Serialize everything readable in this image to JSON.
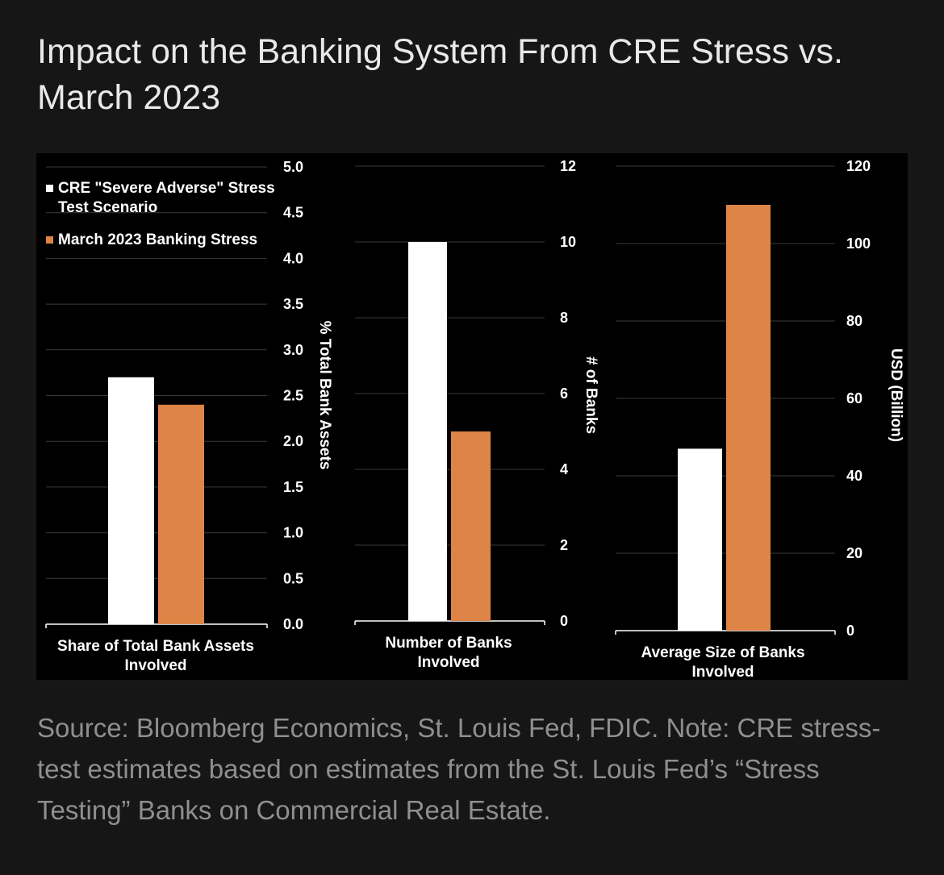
{
  "title": "Impact on the Banking System From CRE Stress vs. March 2023",
  "source": "Source: Bloomberg Economics, St. Louis Fed, FDIC. Note: CRE stress-test estimates based on estimates from the St. Louis Fed’s “Stress Testing” Banks on Commercial Real Estate.",
  "colors": {
    "background": "#161616",
    "panel": "#000000",
    "series_cre": "#ffffff",
    "series_march": "#dd8446",
    "grid": "#3a3a3a"
  },
  "legend": [
    {
      "label": "CRE \"Severe Adverse\" Stress Test Scenario",
      "color": "#ffffff"
    },
    {
      "label": "March 2023 Banking Stress",
      "color": "#dd8446"
    }
  ],
  "chart_data": [
    {
      "type": "bar",
      "categories": [
        "Share of Total Bank Assets Involved"
      ],
      "series": [
        {
          "name": "CRE \"Severe Adverse\" Stress Test Scenario",
          "values": [
            2.7
          ]
        },
        {
          "name": "March 2023 Banking Stress",
          "values": [
            2.4
          ]
        }
      ],
      "ylabel": "% Total Bank Assets",
      "ylim": [
        0,
        5
      ],
      "yticks": [
        "0.0",
        "0.5",
        "1.0",
        "1.5",
        "2.0",
        "2.5",
        "3.0",
        "3.5",
        "4.0",
        "4.5",
        "5.0"
      ],
      "grid": true,
      "legend_position": "top-left"
    },
    {
      "type": "bar",
      "categories": [
        "Number of Banks Involved"
      ],
      "series": [
        {
          "name": "CRE \"Severe Adverse\" Stress Test Scenario",
          "values": [
            10
          ]
        },
        {
          "name": "March 2023 Banking Stress",
          "values": [
            5
          ]
        }
      ],
      "ylabel": "# of Banks",
      "ylim": [
        0,
        12
      ],
      "yticks": [
        "0",
        "2",
        "4",
        "6",
        "8",
        "10",
        "12"
      ],
      "grid": true
    },
    {
      "type": "bar",
      "categories": [
        "Average Size of Banks Involved"
      ],
      "series": [
        {
          "name": "CRE \"Severe Adverse\" Stress Test Scenario",
          "values": [
            47
          ]
        },
        {
          "name": "March 2023 Banking Stress",
          "values": [
            110
          ]
        }
      ],
      "ylabel": "USD (Billion)",
      "ylim": [
        0,
        120
      ],
      "yticks": [
        "0",
        "20",
        "40",
        "60",
        "80",
        "100",
        "120"
      ],
      "grid": true
    }
  ]
}
